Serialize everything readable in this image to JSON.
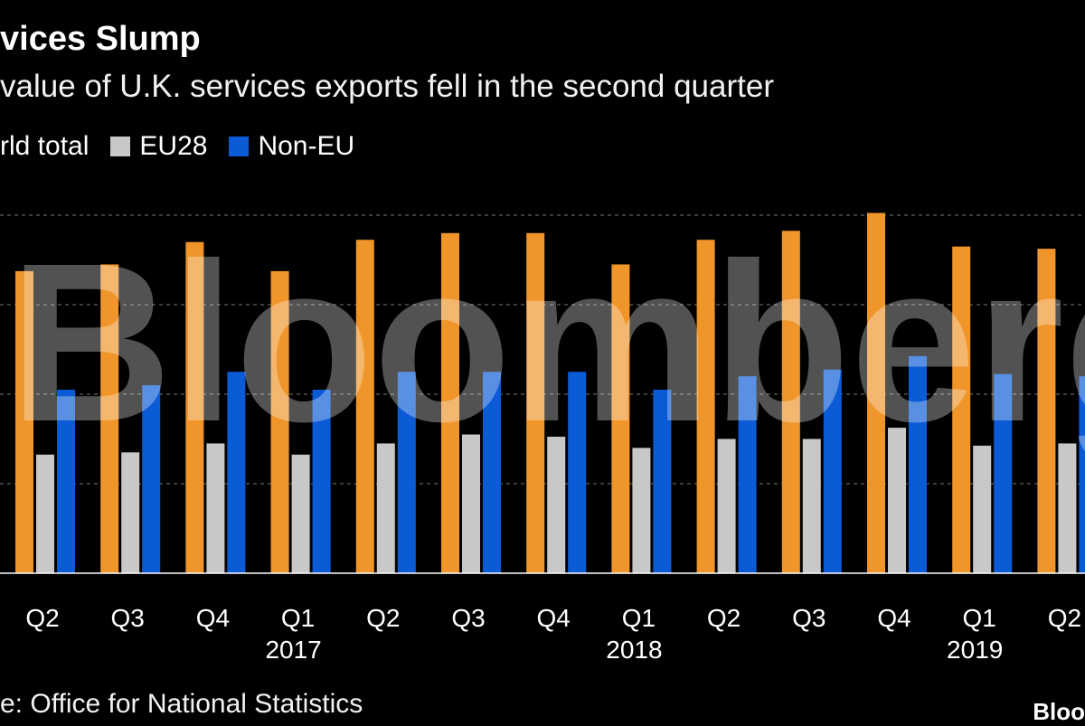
{
  "chart_data": {
    "type": "bar",
    "title": "vices Slump",
    "subtitle": "value of U.K. services exports fell in the second quarter",
    "categories": [
      "Q2",
      "Q3",
      "Q4",
      "Q1",
      "Q2",
      "Q3",
      "Q4",
      "Q1",
      "Q2",
      "Q3",
      "Q4",
      "Q1",
      "Q2"
    ],
    "year_labels": [
      {
        "label": "2017",
        "category_index": 3
      },
      {
        "label": "2018",
        "category_index": 7
      },
      {
        "label": "2019",
        "category_index": 11
      }
    ],
    "series": [
      {
        "name": "rld total",
        "color": "#f0952a",
        "values": [
          67.5,
          69.0,
          74.0,
          67.5,
          74.5,
          76.0,
          76.0,
          69.0,
          74.5,
          76.5,
          80.5,
          73.0,
          72.5
        ]
      },
      {
        "name": "EU28",
        "color": "#c8c8c8",
        "values": [
          26.5,
          27.0,
          29.0,
          26.5,
          29.0,
          31.0,
          30.5,
          28.0,
          30.0,
          30.0,
          32.5,
          28.5,
          29.0
        ]
      },
      {
        "name": "Non-EU",
        "color": "#0c5bd6",
        "values": [
          41.0,
          42.0,
          45.0,
          41.0,
          45.0,
          45.0,
          45.0,
          41.0,
          44.0,
          45.5,
          48.5,
          44.5,
          44.0
        ]
      }
    ],
    "ylim": [
      0,
      80
    ],
    "gridlines": [
      20,
      40,
      60,
      80
    ],
    "grid": true,
    "legend_position": "top-left",
    "source": "e: Office for National Statistics",
    "watermark": "Bloomberg",
    "brand": "Bloo"
  }
}
